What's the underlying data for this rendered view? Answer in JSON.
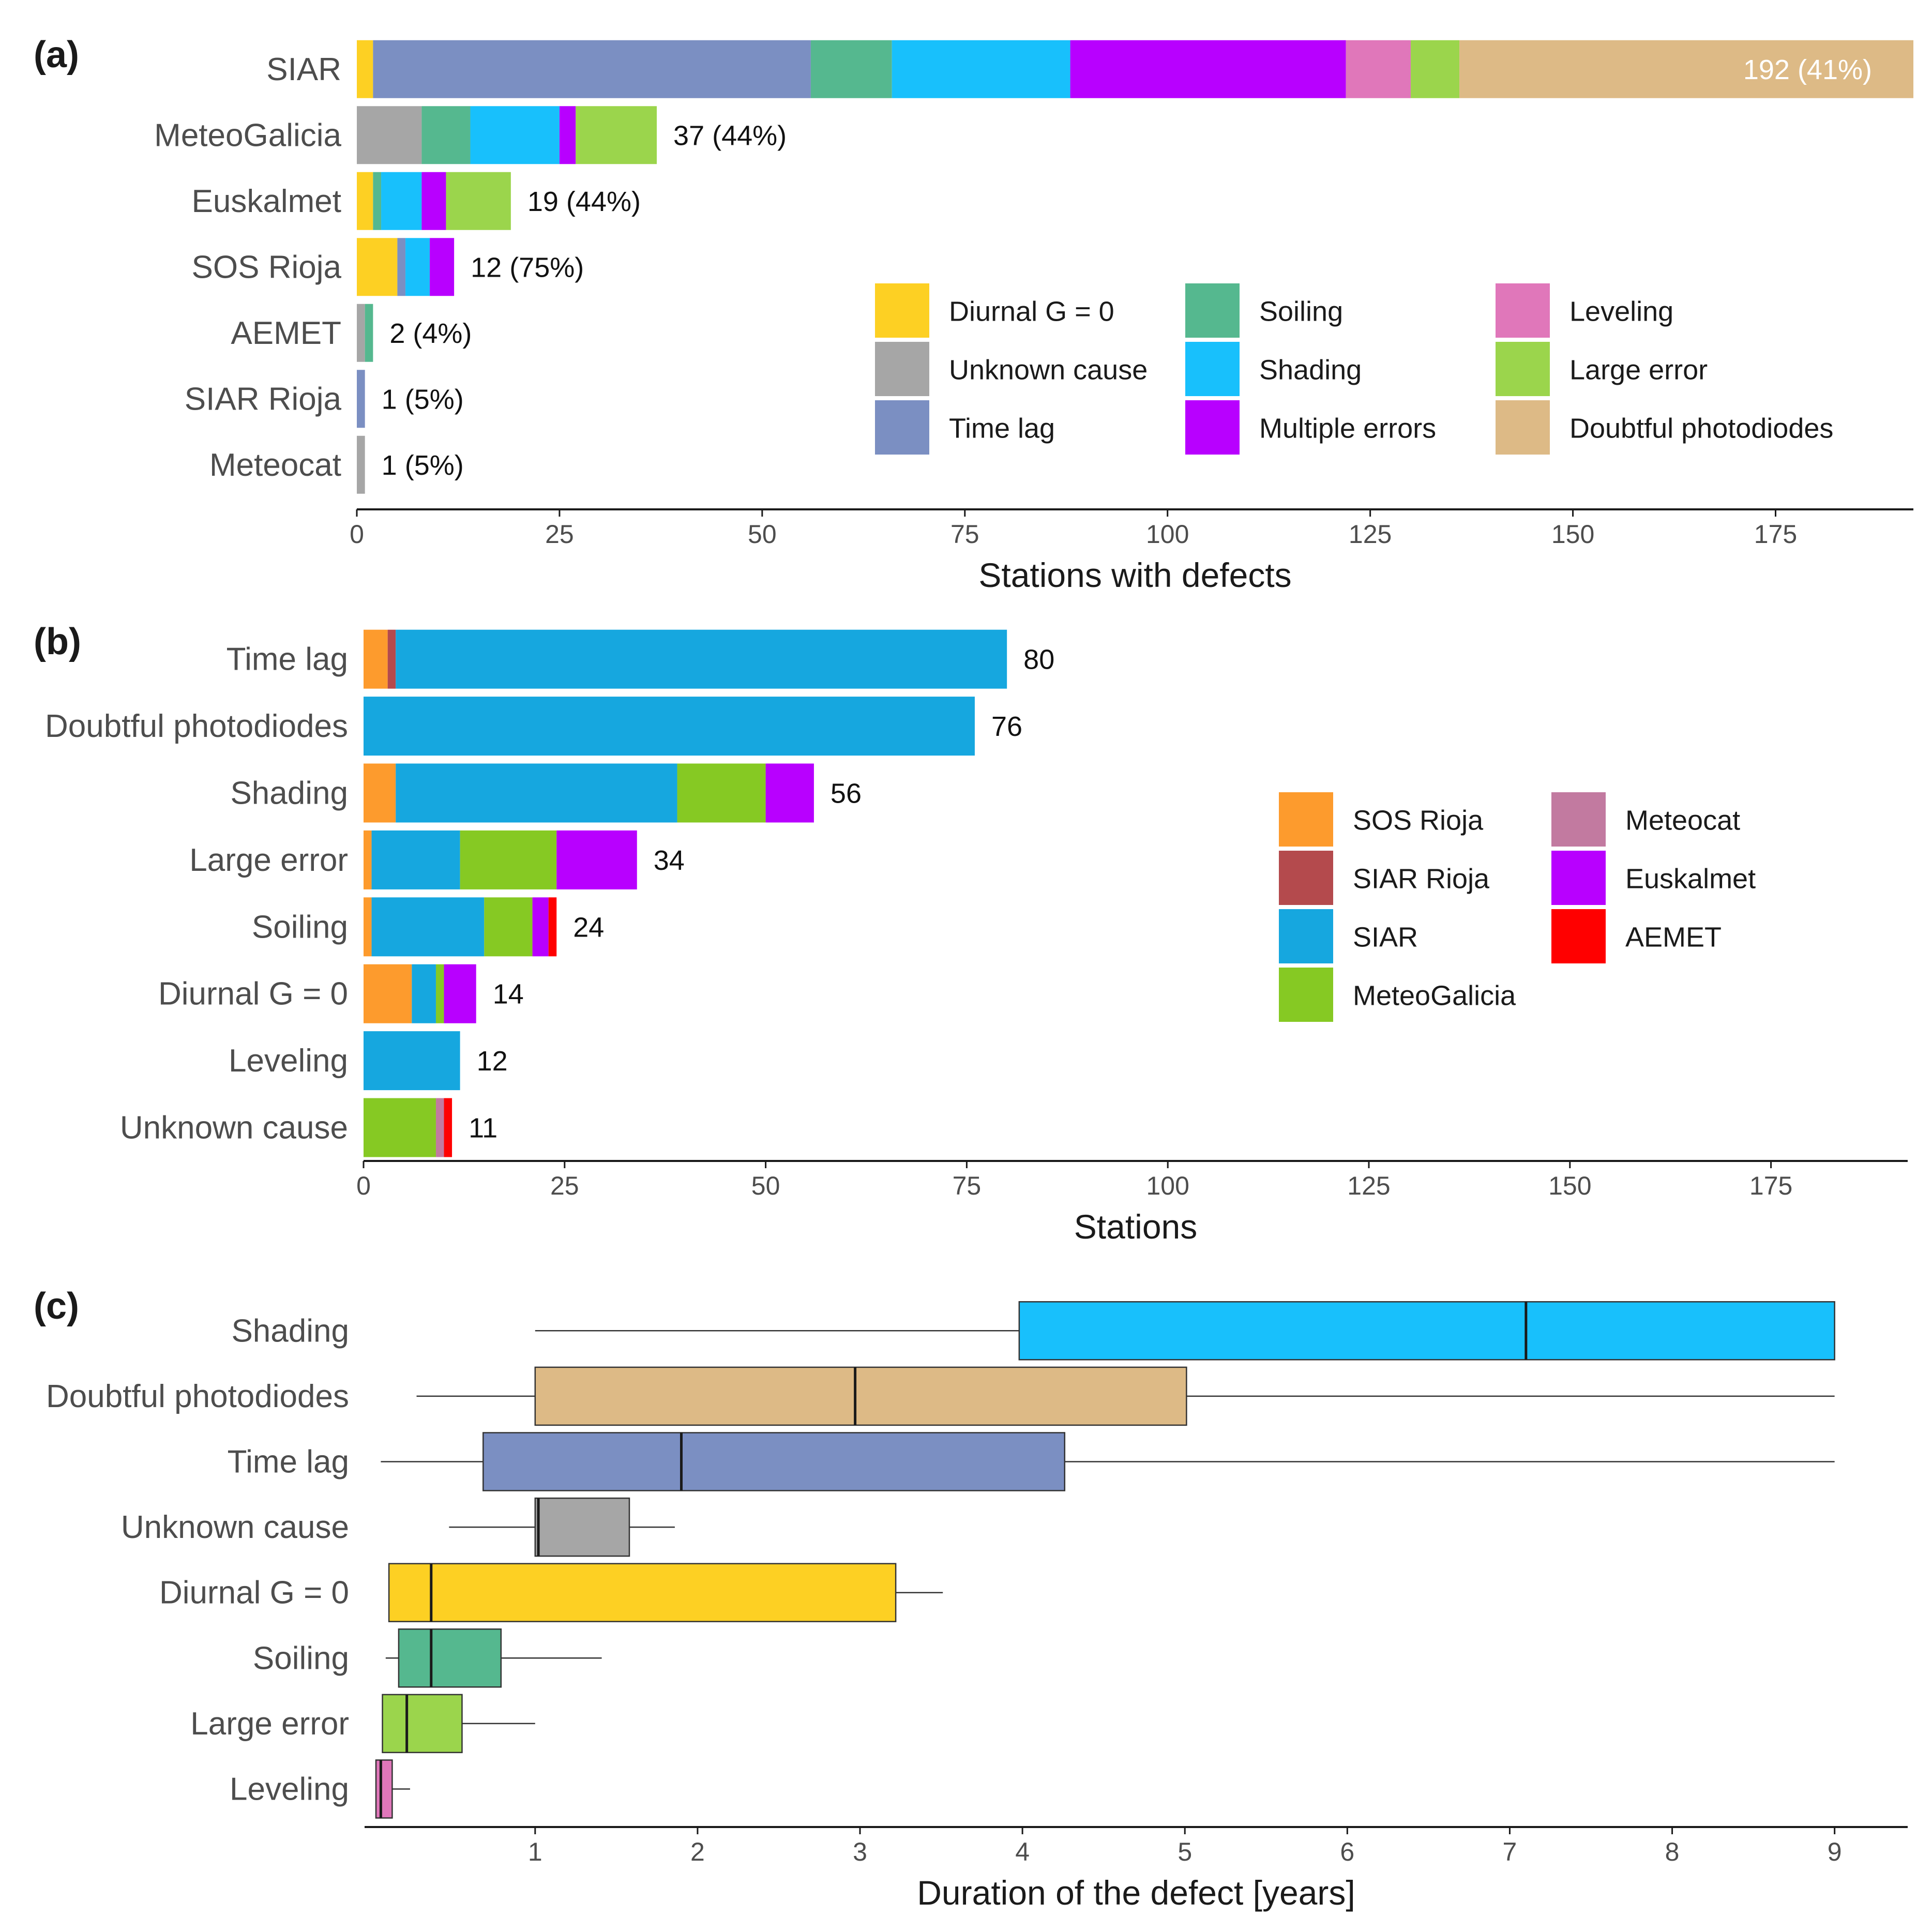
{
  "colors": {
    "diurnal": "#FDD023",
    "unknown": "#A6A6A6",
    "timelag": "#7B8FC2",
    "soiling": "#55B88F",
    "shading": "#18C0FC",
    "multiple": "#B800FF",
    "leveling": "#E077BA",
    "largeerror": "#9BD54C",
    "doubtful": "#DDBA86",
    "sosrioja": "#FD9B2D",
    "siarrioja": "#B44A4D",
    "siar": "#16A7DF",
    "meteocat": "#C27AA0",
    "euskalmet": "#B800FF",
    "aemet": "#FF0000",
    "meteogalicia": "#86C923"
  },
  "chart_data": [
    {
      "panel": "(a)",
      "type": "bar",
      "orientation": "horizontal",
      "stacked": true,
      "xlabel": "Stations with defects",
      "xlim": [
        0,
        192
      ],
      "xticks": [
        0,
        25,
        50,
        75,
        100,
        125,
        150,
        175
      ],
      "categories": [
        "SIAR",
        "MeteoGalicia",
        "Euskalmet",
        "SOS Rioja",
        "AEMET",
        "SIAR Rioja",
        "Meteocat"
      ],
      "series": [
        {
          "name": "Diurnal G = 0",
          "color_key": "diurnal",
          "values": [
            2,
            0,
            2,
            5,
            0,
            0,
            0
          ]
        },
        {
          "name": "Unknown cause",
          "color_key": "unknown",
          "values": [
            0,
            8,
            0,
            0,
            1,
            0,
            1
          ]
        },
        {
          "name": "Time lag",
          "color_key": "timelag",
          "values": [
            54,
            0,
            0,
            1,
            0,
            1,
            0
          ]
        },
        {
          "name": "Soiling",
          "color_key": "soiling",
          "values": [
            10,
            6,
            1,
            0,
            1,
            0,
            0
          ]
        },
        {
          "name": "Shading",
          "color_key": "shading",
          "values": [
            22,
            11,
            5,
            3,
            0,
            0,
            0
          ]
        },
        {
          "name": "Multiple errors",
          "color_key": "multiple",
          "values": [
            34,
            2,
            3,
            3,
            0,
            0,
            0
          ]
        },
        {
          "name": "Leveling",
          "color_key": "leveling",
          "values": [
            8,
            0,
            0,
            0,
            0,
            0,
            0
          ]
        },
        {
          "name": "Large error",
          "color_key": "largeerror",
          "values": [
            6,
            10,
            8,
            0,
            0,
            0,
            0
          ]
        },
        {
          "name": "Doubtful photodiodes",
          "color_key": "doubtful",
          "values": [
            56,
            0,
            0,
            0,
            0,
            0,
            0
          ]
        }
      ],
      "totals": [
        192,
        37,
        19,
        12,
        2,
        1,
        1
      ],
      "labels": [
        "192 (41%)",
        "37 (44%)",
        "19 (44%)",
        "12 (75%)",
        "2 (4%)",
        "1 (5%)",
        "1 (5%)"
      ],
      "legend": {
        "position": "inside-lower-right",
        "items": [
          {
            "name": "Diurnal G = 0",
            "color_key": "diurnal"
          },
          {
            "name": "Unknown cause",
            "color_key": "unknown"
          },
          {
            "name": "Time lag",
            "color_key": "timelag"
          },
          {
            "name": "Soiling",
            "color_key": "soiling"
          },
          {
            "name": "Shading",
            "color_key": "shading"
          },
          {
            "name": "Multiple errors",
            "color_key": "multiple"
          },
          {
            "name": "Leveling",
            "color_key": "leveling"
          },
          {
            "name": "Large error",
            "color_key": "largeerror"
          },
          {
            "name": "Doubtful photodiodes",
            "color_key": "doubtful"
          }
        ]
      }
    },
    {
      "panel": "(b)",
      "type": "bar",
      "orientation": "horizontal",
      "stacked": true,
      "xlabel": "Stations",
      "xlim": [
        0,
        192
      ],
      "xticks": [
        0,
        25,
        50,
        75,
        100,
        125,
        150,
        175
      ],
      "categories": [
        "Time lag",
        "Doubtful photodiodes",
        "Shading",
        "Large error",
        "Soiling",
        "Diurnal G = 0",
        "Leveling",
        "Unknown cause"
      ],
      "series": [
        {
          "name": "SOS Rioja",
          "color_key": "sosrioja",
          "values": [
            3,
            0,
            4,
            1,
            1,
            6,
            0,
            0
          ]
        },
        {
          "name": "SIAR Rioja",
          "color_key": "siarrioja",
          "values": [
            1,
            0,
            0,
            0,
            0,
            0,
            0,
            0
          ]
        },
        {
          "name": "SIAR",
          "color_key": "siar",
          "values": [
            76,
            76,
            35,
            11,
            14,
            3,
            12,
            0
          ]
        },
        {
          "name": "MeteoGalicia",
          "color_key": "meteogalicia",
          "values": [
            0,
            0,
            11,
            12,
            6,
            1,
            0,
            9
          ]
        },
        {
          "name": "Meteocat",
          "color_key": "meteocat",
          "values": [
            0,
            0,
            0,
            0,
            0,
            0,
            0,
            1
          ]
        },
        {
          "name": "Euskalmet",
          "color_key": "euskalmet",
          "values": [
            0,
            0,
            6,
            10,
            2,
            4,
            0,
            0
          ]
        },
        {
          "name": "AEMET",
          "color_key": "aemet",
          "values": [
            0,
            0,
            0,
            0,
            1,
            0,
            0,
            1
          ]
        }
      ],
      "totals": [
        80,
        76,
        56,
        34,
        24,
        14,
        12,
        11
      ],
      "labels": [
        "80",
        "76",
        "56",
        "34",
        "24",
        "14",
        "12",
        "11"
      ],
      "legend": {
        "position": "inside-right",
        "items": [
          {
            "name": "SOS Rioja",
            "color_key": "sosrioja"
          },
          {
            "name": "SIAR Rioja",
            "color_key": "siarrioja"
          },
          {
            "name": "SIAR",
            "color_key": "siar"
          },
          {
            "name": "MeteoGalicia",
            "color_key": "meteogalicia"
          },
          {
            "name": "Meteocat",
            "color_key": "meteocat"
          },
          {
            "name": "Euskalmet",
            "color_key": "euskalmet"
          },
          {
            "name": "AEMET",
            "color_key": "aemet"
          }
        ]
      }
    },
    {
      "panel": "(c)",
      "type": "boxplot",
      "orientation": "horizontal",
      "xlabel": "Duration of the defect [years]",
      "xlim": [
        -0.05,
        9.45
      ],
      "xticks": [
        1,
        2,
        3,
        4,
        5,
        6,
        7,
        8,
        9
      ],
      "categories": [
        "Shading",
        "Doubtful photodiodes",
        "Time lag",
        "Unknown cause",
        "Diurnal G = 0",
        "Soiling",
        "Large error",
        "Leveling"
      ],
      "boxes": [
        {
          "name": "Shading",
          "color_key": "shading",
          "whisker_low": 1.0,
          "q1": 3.98,
          "median": 7.1,
          "q3": 9.0,
          "whisker_high": 9.0
        },
        {
          "name": "Doubtful photodiodes",
          "color_key": "doubtful",
          "whisker_low": 0.27,
          "q1": 1.0,
          "median": 2.97,
          "q3": 5.01,
          "whisker_high": 9.0
        },
        {
          "name": "Time lag",
          "color_key": "timelag",
          "whisker_low": 0.05,
          "q1": 0.68,
          "median": 1.9,
          "q3": 4.26,
          "whisker_high": 9.0
        },
        {
          "name": "Unknown cause",
          "color_key": "unknown",
          "whisker_low": 0.47,
          "q1": 1.0,
          "median": 1.02,
          "q3": 1.58,
          "whisker_high": 1.86
        },
        {
          "name": "Diurnal G = 0",
          "color_key": "diurnal",
          "whisker_low": 0.1,
          "q1": 0.1,
          "median": 0.36,
          "q3": 3.22,
          "whisker_high": 3.51
        },
        {
          "name": "Soiling",
          "color_key": "soiling",
          "whisker_low": 0.08,
          "q1": 0.16,
          "median": 0.36,
          "q3": 0.79,
          "whisker_high": 1.41
        },
        {
          "name": "Large error",
          "color_key": "largeerror",
          "whisker_low": 0.06,
          "q1": 0.06,
          "median": 0.21,
          "q3": 0.55,
          "whisker_high": 1.0
        },
        {
          "name": "Leveling",
          "color_key": "leveling",
          "whisker_low": 0.02,
          "q1": 0.02,
          "median": 0.05,
          "q3": 0.12,
          "whisker_high": 0.23
        }
      ]
    }
  ]
}
